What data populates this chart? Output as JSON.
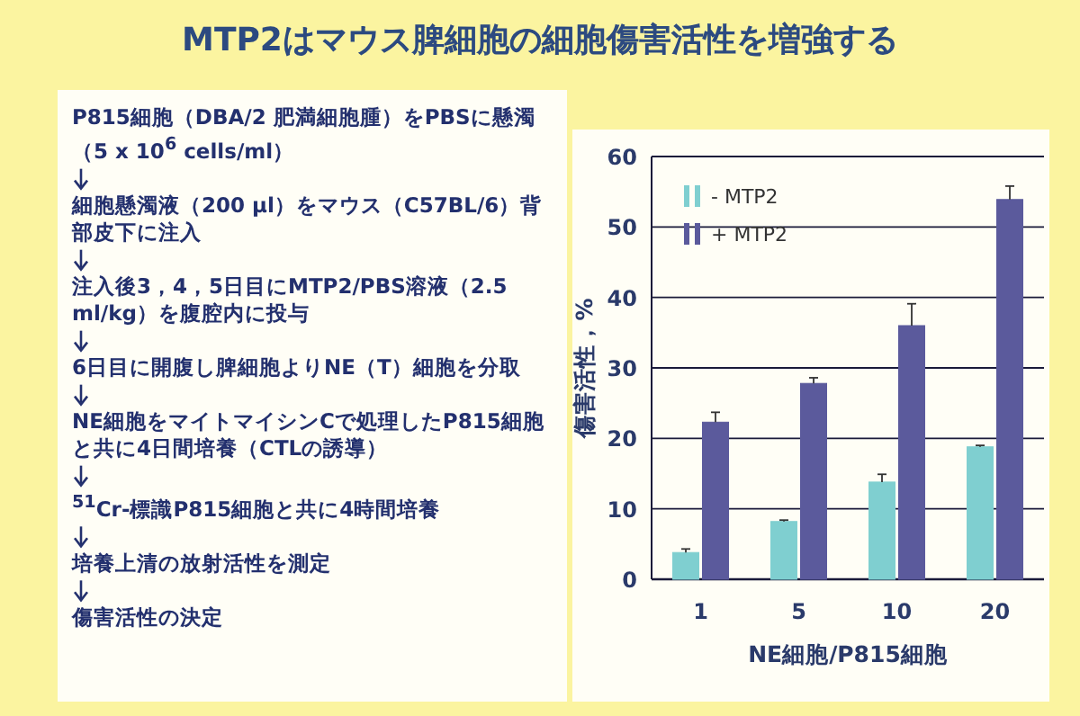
{
  "chart_data": [
    {
      "type": "other",
      "title": "MTP2はマウス脾細胞の細胞傷害活性を増強する",
      "annotations": [
        "P815細胞（DBA/2 肥満細胞腫）をPBSに懸濁（5 x 10$^{6}$ cells/ml）",
        "細胞懸濁液（200 μl）をマウス（C57BL/6）背部皮下に注入",
        "注入後3，4，5日目にMTP2/PBS溶液（2.5 ml/kg）を腹腔内に投与",
        "6日目に開腹し脾細胞よりNE（T）細胞を分取",
        "NE細胞をマイトマイシンCで処理したP815細胞と共に4日間培養（CTLの誘導）",
        "$^{51}$Cr-標識P815細胞と共に4時間培養",
        "培養上清の放射活性を測定",
        "傷害活性の決定"
      ]
    },
    {
      "type": "bar",
      "xlabel": "NE細胞/P815細胞",
      "ylabel": "傷害活性，%",
      "categories": [
        "1",
        "5",
        "10",
        "20"
      ],
      "series": [
        {
          "name": "- MTP2",
          "color": "#7fcfd0",
          "values": [
            3.8,
            8.2,
            13.8,
            18.8
          ],
          "errors": [
            [
              3.8,
              4.3
            ],
            [
              8.2,
              8.4
            ],
            [
              13.8,
              14.9
            ],
            [
              18.8,
              19.0
            ]
          ]
        },
        {
          "name": "+ MTP2",
          "color": "#5b5a9c",
          "values": [
            22.3,
            27.8,
            36.0,
            53.9
          ],
          "errors": [
            [
              22.3,
              23.7
            ],
            [
              27.8,
              28.6
            ],
            [
              36.0,
              39.1
            ],
            [
              53.9,
              55.8
            ]
          ]
        }
      ],
      "ylim": [
        0,
        60
      ],
      "yticks": [
        0,
        10,
        20,
        30,
        40,
        50,
        60
      ],
      "grid": "y",
      "legend": "top left"
    }
  ]
}
